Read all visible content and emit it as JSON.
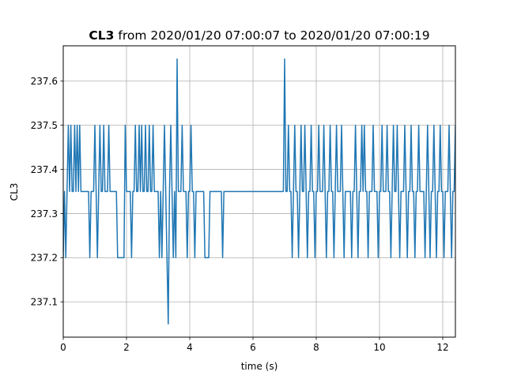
{
  "chart_data": {
    "type": "line",
    "title": {
      "bold_part": "CL3",
      "rest": " from 2020/01/20 07:00:07 to 2020/01/20 07:00:19"
    },
    "xlabel": "time (s)",
    "ylabel": "CL3",
    "xlim": [
      0,
      12.4
    ],
    "ylim": [
      237.02,
      237.68
    ],
    "xticks": [
      0,
      2,
      4,
      6,
      8,
      10,
      12
    ],
    "xtick_labels": [
      "0",
      "2",
      "4",
      "6",
      "8",
      "10",
      "12"
    ],
    "yticks": [
      237.1,
      237.2,
      237.3,
      237.4,
      237.5,
      237.6
    ],
    "ytick_labels": [
      "237.1",
      "237.2",
      "237.3",
      "237.4",
      "237.5",
      "237.6"
    ],
    "grid": true,
    "line_color": "#1f77b4",
    "x_step": 0.04,
    "series": [
      {
        "values": [
          237.2,
          237.35,
          237.2,
          237.35,
          237.5,
          237.35,
          237.5,
          237.35,
          237.35,
          237.5,
          237.35,
          237.5,
          237.35,
          237.35,
          237.5,
          237.35,
          237.35,
          237.35,
          237.35,
          237.35,
          237.35,
          237.35,
          237.2,
          237.35,
          237.35,
          237.35,
          237.5,
          237.35,
          237.2,
          237.35,
          237.5,
          237.35,
          237.35,
          237.5,
          237.35,
          237.35,
          237.35,
          237.5,
          237.35,
          237.35,
          237.35,
          237.35,
          237.35,
          237.35,
          237.2,
          237.2,
          237.2,
          237.2,
          237.2,
          237.2,
          237.35,
          237.35,
          237.35,
          237.35,
          237.35,
          237.35,
          237.35,
          237.35,
          237.35,
          237.35,
          237.35,
          237.35,
          237.35,
          237.35,
          237.35,
          237.35,
          237.35,
          237.35,
          237.35,
          237.35,
          237.35,
          237.35,
          237.35,
          237.35,
          237.35,
          237.35,
          237.35,
          237.35,
          237.35,
          237.35,
          237.35,
          237.35,
          237.35,
          237.35,
          237.35,
          237.35,
          237.35,
          237.35,
          237.35,
          237.35,
          237.35,
          237.35,
          237.35,
          237.35,
          237.35,
          237.35,
          237.35,
          237.35,
          237.35,
          237.35,
          237.35,
          237.35,
          237.35,
          237.35,
          237.35,
          237.35,
          237.35,
          237.35,
          237.35,
          237.35,
          237.35,
          237.35,
          237.35,
          237.35,
          237.35,
          237.35,
          237.35,
          237.35,
          237.35,
          237.35,
          237.35,
          237.35,
          237.35,
          237.35,
          237.35,
          237.35,
          237.35,
          237.35,
          237.35,
          237.35,
          237.35,
          237.35,
          237.35,
          237.35,
          237.35,
          237.35,
          237.35,
          237.35,
          237.35,
          237.35,
          237.35,
          237.35,
          237.35,
          237.35,
          237.35,
          237.35,
          237.35,
          237.35,
          237.35,
          237.35,
          237.35,
          237.35,
          237.35,
          237.35,
          237.35,
          237.35,
          237.35,
          237.35,
          237.35,
          237.35,
          237.35,
          237.35,
          237.35,
          237.35,
          237.35,
          237.35,
          237.35,
          237.35,
          237.35,
          237.35,
          237.35,
          237.35,
          237.35,
          237.35,
          237.35,
          237.35,
          237.35,
          237.35,
          237.35,
          237.35,
          237.35,
          237.35,
          237.35,
          237.35,
          237.35,
          237.35,
          237.35,
          237.35,
          237.35,
          237.35,
          237.35,
          237.35,
          237.35,
          237.35,
          237.35,
          237.35,
          237.35,
          237.35,
          237.35,
          237.35,
          237.35,
          237.35,
          237.35,
          237.35,
          237.35,
          237.35,
          237.35,
          237.35,
          237.35,
          237.35,
          237.35,
          237.35,
          237.35,
          237.35,
          237.35,
          237.35,
          237.35,
          237.35,
          237.35,
          237.35,
          237.35,
          237.35,
          237.35,
          237.35,
          237.35,
          237.35,
          237.35,
          237.35,
          237.35,
          237.35,
          237.35,
          237.35,
          237.35,
          237.35,
          237.35,
          237.35,
          237.35,
          237.35,
          237.35,
          237.35,
          237.35,
          237.35,
          237.35,
          237.35,
          237.35,
          237.35,
          237.35,
          237.35,
          237.35,
          237.35,
          237.35,
          237.35,
          237.35,
          237.35,
          237.35,
          237.35,
          237.35,
          237.35,
          237.35,
          237.35,
          237.35,
          237.35,
          237.35,
          237.35,
          237.35,
          237.35,
          237.35,
          237.35,
          237.35,
          237.35,
          237.35,
          237.35,
          237.35,
          237.35,
          237.35,
          237.35,
          237.35,
          237.35,
          237.35,
          237.35,
          237.35,
          237.35,
          237.35,
          237.35,
          237.35,
          237.35,
          237.35,
          237.35,
          237.35,
          237.35,
          237.35,
          237.35,
          237.35,
          237.35,
          237.35,
          237.35,
          237.35,
          237.35,
          237.35,
          237.35,
          237.35,
          237.35,
          237.5
        ]
      }
    ],
    "overrides": [
      [
        0.0,
        237.2
      ],
      [
        0.04,
        237.35
      ],
      [
        0.08,
        237.2
      ],
      [
        0.12,
        237.35
      ],
      [
        0.16,
        237.5
      ],
      [
        0.2,
        237.35
      ],
      [
        0.24,
        237.5
      ],
      [
        0.28,
        237.35
      ],
      [
        0.32,
        237.35
      ],
      [
        0.36,
        237.5
      ],
      [
        0.4,
        237.35
      ],
      [
        0.44,
        237.5
      ],
      [
        0.48,
        237.35
      ],
      [
        0.52,
        237.5
      ],
      [
        0.56,
        237.35
      ],
      [
        0.6,
        237.35
      ],
      [
        0.64,
        237.35
      ],
      [
        0.68,
        237.35
      ],
      [
        0.72,
        237.35
      ],
      [
        0.76,
        237.35
      ],
      [
        0.8,
        237.35
      ],
      [
        0.84,
        237.2
      ],
      [
        0.88,
        237.35
      ],
      [
        0.92,
        237.35
      ],
      [
        0.96,
        237.35
      ],
      [
        1.0,
        237.5
      ],
      [
        1.04,
        237.35
      ],
      [
        1.08,
        237.2
      ],
      [
        1.12,
        237.35
      ],
      [
        1.16,
        237.5
      ],
      [
        1.2,
        237.35
      ],
      [
        1.24,
        237.35
      ],
      [
        1.28,
        237.5
      ],
      [
        1.32,
        237.35
      ],
      [
        1.36,
        237.35
      ],
      [
        1.4,
        237.35
      ],
      [
        1.44,
        237.5
      ],
      [
        1.48,
        237.35
      ],
      [
        1.52,
        237.35
      ],
      [
        1.56,
        237.35
      ],
      [
        1.6,
        237.35
      ],
      [
        1.64,
        237.35
      ],
      [
        1.68,
        237.35
      ],
      [
        1.72,
        237.2
      ],
      [
        1.76,
        237.2
      ],
      [
        1.8,
        237.2
      ],
      [
        1.84,
        237.2
      ],
      [
        1.88,
        237.2
      ],
      [
        1.92,
        237.2
      ],
      [
        1.96,
        237.5
      ],
      [
        2.0,
        237.35
      ],
      [
        2.04,
        237.35
      ],
      [
        2.08,
        237.35
      ],
      [
        2.12,
        237.35
      ],
      [
        2.16,
        237.2
      ],
      [
        2.2,
        237.35
      ],
      [
        2.24,
        237.35
      ],
      [
        2.28,
        237.5
      ],
      [
        2.32,
        237.35
      ],
      [
        2.36,
        237.35
      ],
      [
        2.4,
        237.5
      ],
      [
        2.44,
        237.35
      ],
      [
        2.48,
        237.5
      ],
      [
        2.52,
        237.35
      ],
      [
        2.56,
        237.35
      ],
      [
        2.6,
        237.5
      ],
      [
        2.64,
        237.35
      ],
      [
        2.68,
        237.35
      ],
      [
        2.72,
        237.5
      ],
      [
        2.76,
        237.35
      ],
      [
        2.8,
        237.35
      ],
      [
        2.84,
        237.5
      ],
      [
        2.88,
        237.35
      ],
      [
        2.92,
        237.35
      ],
      [
        2.96,
        237.35
      ],
      [
        3.0,
        237.35
      ],
      [
        3.04,
        237.2
      ],
      [
        3.08,
        237.35
      ],
      [
        3.12,
        237.2
      ],
      [
        3.16,
        237.35
      ],
      [
        3.2,
        237.5
      ],
      [
        3.24,
        237.35
      ],
      [
        3.28,
        237.2
      ],
      [
        3.32,
        237.05
      ],
      [
        3.36,
        237.35
      ],
      [
        3.4,
        237.5
      ],
      [
        3.44,
        237.35
      ],
      [
        3.48,
        237.2
      ],
      [
        3.52,
        237.35
      ],
      [
        3.56,
        237.2
      ],
      [
        3.6,
        237.65
      ],
      [
        3.64,
        237.35
      ],
      [
        3.68,
        237.35
      ],
      [
        3.72,
        237.35
      ],
      [
        3.76,
        237.5
      ],
      [
        3.8,
        237.35
      ],
      [
        3.84,
        237.35
      ],
      [
        3.88,
        237.35
      ],
      [
        3.92,
        237.2
      ],
      [
        3.96,
        237.35
      ],
      [
        4.0,
        237.35
      ],
      [
        4.04,
        237.5
      ],
      [
        4.08,
        237.35
      ],
      [
        4.12,
        237.35
      ],
      [
        4.16,
        237.2
      ],
      [
        4.2,
        237.35
      ],
      [
        4.24,
        237.35
      ],
      [
        4.28,
        237.35
      ],
      [
        4.32,
        237.35
      ],
      [
        4.36,
        237.35
      ],
      [
        4.4,
        237.35
      ],
      [
        4.44,
        237.35
      ],
      [
        4.48,
        237.2
      ],
      [
        4.52,
        237.2
      ],
      [
        4.56,
        237.2
      ],
      [
        4.6,
        237.2
      ],
      [
        4.64,
        237.35
      ],
      [
        4.68,
        237.35
      ],
      [
        4.72,
        237.35
      ],
      [
        4.76,
        237.35
      ],
      [
        4.8,
        237.35
      ],
      [
        4.84,
        237.35
      ],
      [
        4.88,
        237.35
      ],
      [
        4.92,
        237.35
      ],
      [
        4.96,
        237.35
      ],
      [
        5.0,
        237.35
      ],
      [
        5.04,
        237.2
      ],
      [
        5.08,
        237.35
      ],
      [
        5.12,
        237.35
      ],
      [
        5.16,
        237.35
      ],
      [
        5.2,
        237.35
      ],
      [
        5.24,
        237.35
      ],
      [
        5.28,
        237.35
      ],
      [
        5.32,
        237.35
      ],
      [
        5.36,
        237.35
      ],
      [
        5.4,
        237.35
      ],
      [
        5.44,
        237.35
      ],
      [
        5.48,
        237.35
      ],
      [
        5.52,
        237.35
      ],
      [
        5.56,
        237.35
      ],
      [
        5.6,
        237.35
      ],
      [
        5.64,
        237.35
      ],
      [
        5.68,
        237.35
      ],
      [
        5.72,
        237.35
      ],
      [
        5.76,
        237.35
      ],
      [
        5.8,
        237.35
      ],
      [
        5.84,
        237.35
      ],
      [
        5.88,
        237.35
      ],
      [
        5.92,
        237.35
      ],
      [
        5.96,
        237.35
      ],
      [
        6.0,
        237.35
      ],
      [
        6.04,
        237.35
      ],
      [
        6.08,
        237.35
      ],
      [
        6.12,
        237.35
      ],
      [
        6.16,
        237.35
      ],
      [
        6.2,
        237.35
      ],
      [
        6.24,
        237.35
      ],
      [
        6.28,
        237.35
      ],
      [
        6.32,
        237.35
      ],
      [
        6.36,
        237.35
      ],
      [
        6.4,
        237.35
      ],
      [
        6.44,
        237.35
      ],
      [
        6.48,
        237.35
      ],
      [
        6.52,
        237.35
      ],
      [
        6.56,
        237.35
      ],
      [
        6.6,
        237.35
      ],
      [
        6.64,
        237.35
      ],
      [
        6.68,
        237.35
      ],
      [
        6.72,
        237.35
      ],
      [
        6.76,
        237.35
      ],
      [
        6.8,
        237.35
      ],
      [
        6.84,
        237.35
      ],
      [
        6.88,
        237.35
      ],
      [
        6.92,
        237.35
      ],
      [
        6.96,
        237.35
      ],
      [
        7.0,
        237.65
      ]
    ]
  }
}
